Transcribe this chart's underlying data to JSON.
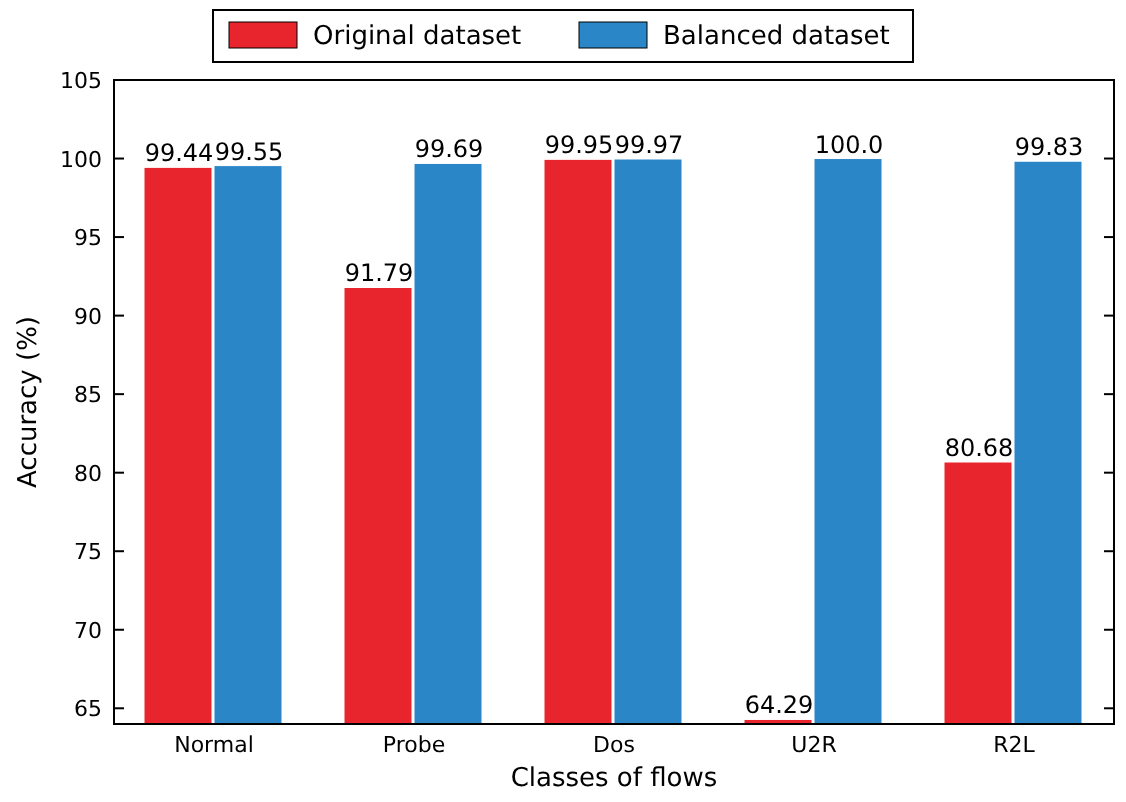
{
  "chart_data": {
    "type": "bar",
    "xlabel": "Classes of flows",
    "ylabel": "Accuracy (%)",
    "categories": [
      "Normal",
      "Probe",
      "Dos",
      "U2R",
      "R2L"
    ],
    "series": [
      {
        "name": "Original dataset",
        "color": "#e8242c",
        "values": [
          99.44,
          91.79,
          99.95,
          64.29,
          80.68
        ],
        "value_labels": [
          "99.44",
          "91.79",
          "99.95",
          "64.29",
          "80.68"
        ]
      },
      {
        "name": "Balanced dataset",
        "color": "#2b86c8",
        "values": [
          99.55,
          99.69,
          99.97,
          100.0,
          99.83
        ],
        "value_labels": [
          "99.55",
          "99.69",
          "99.97",
          "100.0",
          "99.83"
        ]
      }
    ],
    "ylim": [
      64,
      105
    ],
    "yticks": [
      65,
      70,
      75,
      80,
      85,
      90,
      95,
      100,
      105
    ],
    "grid": false,
    "legend": "top"
  }
}
